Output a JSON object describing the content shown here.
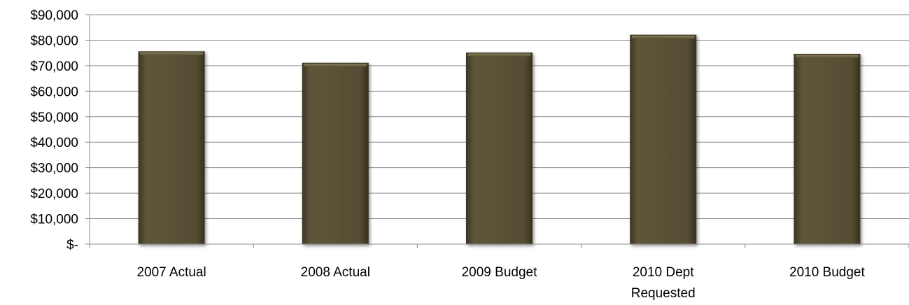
{
  "chart_data": {
    "type": "bar",
    "categories": [
      [
        "2007 Actual"
      ],
      [
        "2008 Actual"
      ],
      [
        "2009 Budget"
      ],
      [
        "2010 Dept",
        "Requested"
      ],
      [
        "2010 Budget"
      ]
    ],
    "values": [
      75500,
      71000,
      75000,
      82000,
      74500
    ],
    "ylim": [
      0,
      90000
    ],
    "y_step": 10000,
    "y_tick_labels": [
      "$-",
      "$10,000",
      "$20,000",
      "$30,000",
      "$40,000",
      "$50,000",
      "$60,000",
      "$70,000",
      "$80,000",
      "$90,000"
    ],
    "grid": true,
    "legend": "none",
    "colors": {
      "bar": "#5a5236",
      "bar_dark": "#3b3522",
      "bar_light": "#766c4a",
      "grid": "#8c8c8c"
    }
  }
}
